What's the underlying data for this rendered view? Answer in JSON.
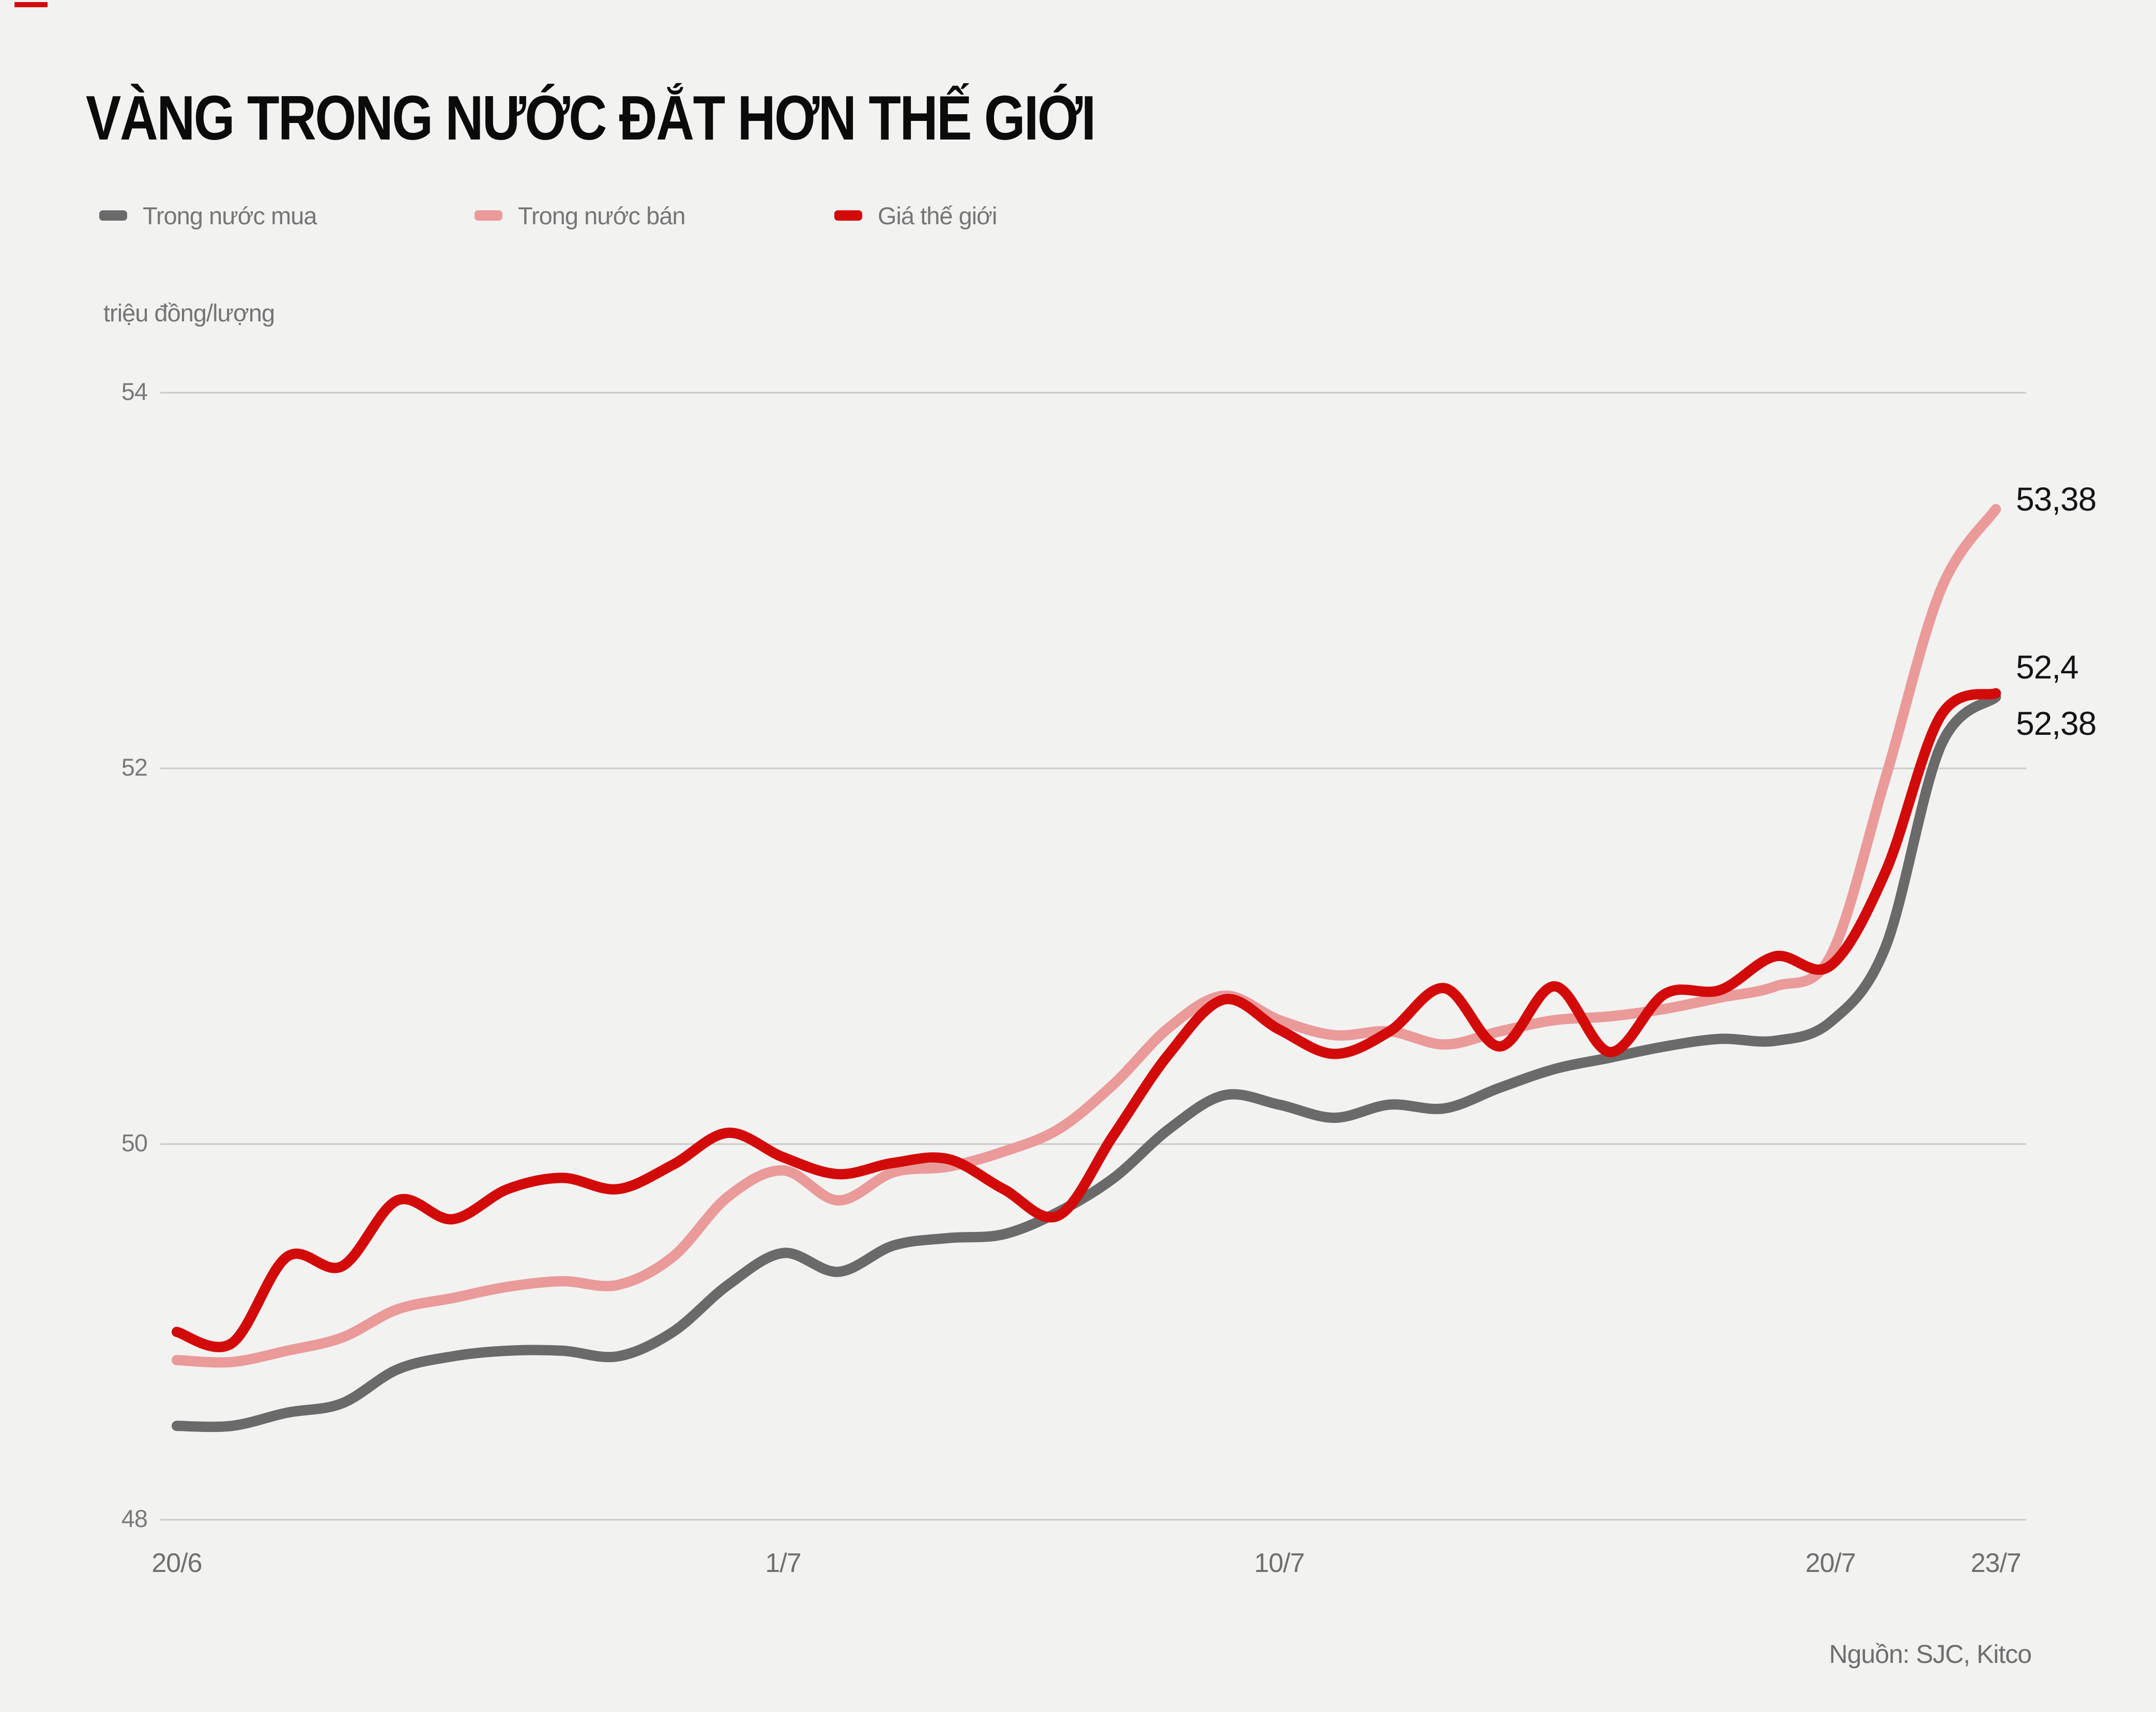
{
  "page": {
    "title": "VÀNG TRONG NƯỚC ĐẮT HƠN THẾ GIỚI",
    "unit_label": "triệu đồng/lượng",
    "source": "Nguồn: SJC, Kitco"
  },
  "colors": {
    "background": "#f2f2f1",
    "gridline": "#c9c9c9",
    "title_text": "#0b0b0b",
    "axis_text": "#767676",
    "value_label_text": "#141414",
    "accent_red": "#d20a0a"
  },
  "chart_data": {
    "type": "line",
    "title": "VÀNG TRONG NƯỚC ĐẮT HƠN THẾ GIỚI",
    "ylabel": "triệu đồng/lượng",
    "grid": "horizontal",
    "legend_position": "top-left",
    "ylim": [
      47.55,
      54.35
    ],
    "y_ticks": [
      54,
      52,
      50,
      48
    ],
    "x_day_range": [
      0,
      33
    ],
    "x_tick_labels": [
      {
        "label": "20/6",
        "day": 0
      },
      {
        "label": "1/7",
        "day": 11
      },
      {
        "label": "10/7",
        "day": 20
      },
      {
        "label": "20/7",
        "day": 30
      },
      {
        "label": "23/7",
        "day": 33
      }
    ],
    "series": [
      {
        "name": "Trong nước bán",
        "color": "#e99a99",
        "end_label": "53,38",
        "end_value": 53.38,
        "values": [
          48.85,
          48.84,
          48.9,
          48.97,
          49.12,
          49.18,
          49.24,
          49.27,
          49.25,
          49.4,
          49.72,
          49.86,
          49.7,
          49.85,
          49.88,
          49.96,
          50.08,
          50.32,
          50.62,
          50.79,
          50.66,
          50.58,
          50.6,
          50.53,
          50.6,
          50.66,
          50.68,
          50.72,
          50.78,
          50.84,
          51.0,
          51.95,
          52.95,
          53.38
        ]
      },
      {
        "name": "Trong nước mua",
        "color": "#6a6a6a",
        "end_label": "52,38",
        "end_value": 52.38,
        "values": [
          48.5,
          48.5,
          48.57,
          48.62,
          48.8,
          48.87,
          48.9,
          48.9,
          48.87,
          49.0,
          49.25,
          49.42,
          49.32,
          49.46,
          49.5,
          49.52,
          49.64,
          49.82,
          50.08,
          50.26,
          50.21,
          50.14,
          50.21,
          50.19,
          50.3,
          50.4,
          50.46,
          50.52,
          50.56,
          50.55,
          50.65,
          51.05,
          52.12,
          52.38
        ]
      },
      {
        "name": "Giá thế giới",
        "color": "#d20a0a",
        "end_label": "52,4",
        "end_value": 52.4,
        "values": [
          49.0,
          48.94,
          49.4,
          49.35,
          49.7,
          49.6,
          49.76,
          49.82,
          49.76,
          49.89,
          50.06,
          49.93,
          49.84,
          49.9,
          49.92,
          49.76,
          49.62,
          50.05,
          50.48,
          50.77,
          50.61,
          50.48,
          50.6,
          50.83,
          50.52,
          50.84,
          50.49,
          50.8,
          50.82,
          51.0,
          50.95,
          51.45,
          52.28,
          52.4
        ]
      }
    ],
    "legend_order": [
      "Trong nước mua",
      "Trong nước bán",
      "Giá thế giới"
    ]
  }
}
